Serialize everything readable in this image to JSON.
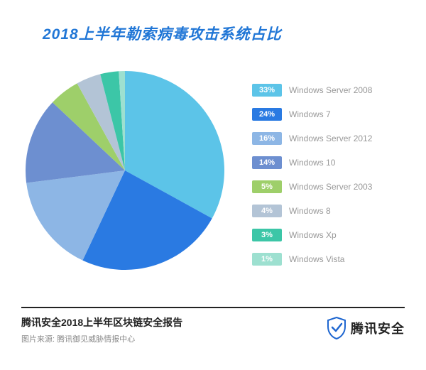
{
  "title": "2018上半年勒索病毒攻击系统占比",
  "pie": {
    "type": "pie",
    "background_color": "#ffffff",
    "start_angle_deg": -90,
    "radius": 140,
    "slices": [
      {
        "label": "Windows Server 2008",
        "percent": 33,
        "display": "33%",
        "color": "#5cc4e8"
      },
      {
        "label": "Windows 7",
        "percent": 24,
        "display": "24%",
        "color": "#2a7ae2"
      },
      {
        "label": "Windows Server 2012",
        "percent": 16,
        "display": "16%",
        "color": "#8db6e5"
      },
      {
        "label": "Windows 10",
        "percent": 14,
        "display": "14%",
        "color": "#6d8fd0"
      },
      {
        "label": "Windows Server 2003",
        "percent": 5,
        "display": "5%",
        "color": "#9ecf6a"
      },
      {
        "label": "Windows 8",
        "percent": 4,
        "display": "4%",
        "color": "#b3c4d6"
      },
      {
        "label": "Windows Xp",
        "percent": 3,
        "display": "3%",
        "color": "#3cc6a7"
      },
      {
        "label": "Windows Vista",
        "percent": 1,
        "display": "1%",
        "color": "#9de0d0"
      }
    ],
    "legend_label_color": "#999999",
    "legend_label_fontsize": 12,
    "badge_text_color": "#ffffff",
    "badge_fontsize": 11
  },
  "footer": {
    "report_name": "腾讯安全2018上半年区块链安全报告",
    "source_label": "图片来源: 腾讯御见威胁情报中心",
    "brand_name": "腾讯安全",
    "brand_color": "#1e66d0",
    "divider_color": "#222222"
  }
}
